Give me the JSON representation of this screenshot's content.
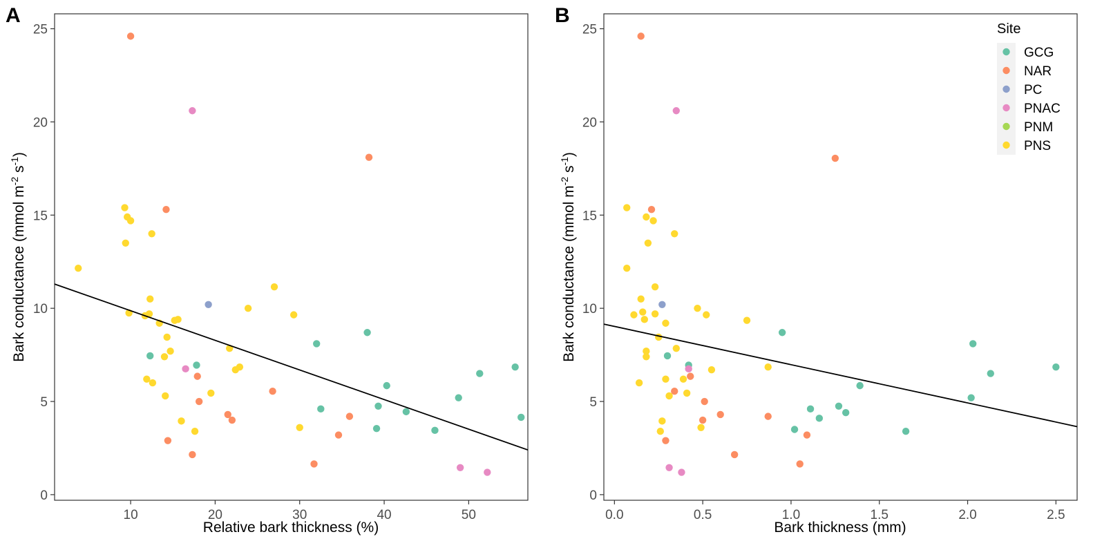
{
  "colors": {
    "GCG": "#66c2a5",
    "NAR": "#fc8d62",
    "PC": "#8da0cb",
    "PNAC": "#e78ac3",
    "PNM": "#a6d854",
    "PNS": "#ffd92f",
    "fit_line": "#000000"
  },
  "legend": {
    "title": "Site",
    "entries": [
      "GCG",
      "NAR",
      "PC",
      "PNAC",
      "PNM",
      "PNS"
    ]
  },
  "chart_data": [
    {
      "panel": "A",
      "type": "scatter",
      "xlabel": "Relative bark thickness (%)",
      "ylabel_parts": [
        "Bark conductance (mmol m",
        "-2",
        " s",
        "-1",
        ")"
      ],
      "xlim": [
        1,
        57
      ],
      "ylim": [
        -0.3,
        25.8
      ],
      "xticks": [
        10,
        20,
        30,
        40,
        50
      ],
      "yticks": [
        0,
        5,
        10,
        15,
        20,
        25
      ],
      "fit_line": {
        "x": [
          1,
          57
        ],
        "y": [
          11.3,
          2.4
        ]
      },
      "series": [
        {
          "name": "GCG",
          "points": [
            [
              12.3,
              7.45
            ],
            [
              17.8,
              6.95
            ],
            [
              32.0,
              8.1
            ],
            [
              32.5,
              4.6
            ],
            [
              38.0,
              8.7
            ],
            [
              39.3,
              4.75
            ],
            [
              39.1,
              3.55
            ],
            [
              40.3,
              5.85
            ],
            [
              42.6,
              4.45
            ],
            [
              46.0,
              3.45
            ],
            [
              48.8,
              5.2
            ],
            [
              51.3,
              6.5
            ],
            [
              55.5,
              6.85
            ],
            [
              56.2,
              4.15
            ]
          ]
        },
        {
          "name": "NAR",
          "points": [
            [
              10.0,
              24.6
            ],
            [
              14.2,
              15.3
            ],
            [
              14.4,
              2.9
            ],
            [
              17.3,
              2.15
            ],
            [
              17.9,
              6.35
            ],
            [
              18.1,
              5.0
            ],
            [
              21.5,
              4.3
            ],
            [
              22.0,
              4.0
            ],
            [
              26.8,
              5.55
            ],
            [
              31.7,
              1.65
            ],
            [
              34.6,
              3.2
            ],
            [
              35.9,
              4.2
            ],
            [
              38.2,
              18.1
            ]
          ]
        },
        {
          "name": "PC",
          "points": [
            [
              19.2,
              10.2
            ]
          ]
        },
        {
          "name": "PNAC",
          "points": [
            [
              16.5,
              6.75
            ],
            [
              17.3,
              20.6
            ],
            [
              49.0,
              1.45
            ],
            [
              52.2,
              1.2
            ]
          ]
        },
        {
          "name": "PNM",
          "points": []
        },
        {
          "name": "PNS",
          "points": [
            [
              3.8,
              12.15
            ],
            [
              9.3,
              15.4
            ],
            [
              9.4,
              13.5
            ],
            [
              9.6,
              14.9
            ],
            [
              9.8,
              9.75
            ],
            [
              10.0,
              14.7
            ],
            [
              11.7,
              9.6
            ],
            [
              11.9,
              6.2
            ],
            [
              12.2,
              9.7
            ],
            [
              12.3,
              10.5
            ],
            [
              12.5,
              14.0
            ],
            [
              12.6,
              6.0
            ],
            [
              13.4,
              9.2
            ],
            [
              14.0,
              7.4
            ],
            [
              14.1,
              5.3
            ],
            [
              14.3,
              8.45
            ],
            [
              14.7,
              7.7
            ],
            [
              15.2,
              9.35
            ],
            [
              15.6,
              9.4
            ],
            [
              16.0,
              3.95
            ],
            [
              17.6,
              3.4
            ],
            [
              19.5,
              5.45
            ],
            [
              21.7,
              7.85
            ],
            [
              22.4,
              6.7
            ],
            [
              22.9,
              6.85
            ],
            [
              23.9,
              10.0
            ],
            [
              27.0,
              11.15
            ],
            [
              29.3,
              9.65
            ],
            [
              30.0,
              3.6
            ]
          ]
        }
      ]
    },
    {
      "panel": "B",
      "type": "scatter",
      "xlabel": "Bark thickness (mm)",
      "ylabel_parts": [
        "Bark conductance (mmol m",
        "-2",
        " s",
        "-1",
        ")"
      ],
      "xlim": [
        -0.06,
        2.62
      ],
      "ylim": [
        -0.3,
        25.8
      ],
      "xticks": [
        0.0,
        0.5,
        1.0,
        1.5,
        2.0,
        2.5
      ],
      "xtick_labels": [
        "0.0",
        "0.5",
        "1.0",
        "1.5",
        "2.0",
        "2.5"
      ],
      "yticks": [
        0,
        5,
        10,
        15,
        20,
        25
      ],
      "fit_line": {
        "x": [
          -0.06,
          2.62
        ],
        "y": [
          9.15,
          3.65
        ]
      },
      "series": [
        {
          "name": "GCG",
          "points": [
            [
              0.3,
              7.45
            ],
            [
              0.42,
              6.95
            ],
            [
              0.95,
              8.7
            ],
            [
              1.02,
              3.5
            ],
            [
              1.11,
              4.6
            ],
            [
              1.16,
              4.1
            ],
            [
              1.27,
              4.75
            ],
            [
              1.31,
              4.4
            ],
            [
              1.39,
              5.85
            ],
            [
              1.65,
              3.4
            ],
            [
              2.02,
              5.2
            ],
            [
              2.03,
              8.1
            ],
            [
              2.13,
              6.5
            ],
            [
              2.5,
              6.85
            ]
          ]
        },
        {
          "name": "NAR",
          "points": [
            [
              0.15,
              24.6
            ],
            [
              0.21,
              15.3
            ],
            [
              0.29,
              2.9
            ],
            [
              0.34,
              5.55
            ],
            [
              0.43,
              6.35
            ],
            [
              0.5,
              4.0
            ],
            [
              0.51,
              5.0
            ],
            [
              0.6,
              4.3
            ],
            [
              0.68,
              2.15
            ],
            [
              0.87,
              4.2
            ],
            [
              1.05,
              1.65
            ],
            [
              1.09,
              3.2
            ],
            [
              1.25,
              18.05
            ]
          ]
        },
        {
          "name": "PC",
          "points": [
            [
              0.27,
              10.2
            ]
          ]
        },
        {
          "name": "PNAC",
          "points": [
            [
              0.31,
              1.45
            ],
            [
              0.35,
              20.6
            ],
            [
              0.38,
              1.2
            ],
            [
              0.42,
              6.75
            ]
          ]
        },
        {
          "name": "PNM",
          "points": []
        },
        {
          "name": "PNS",
          "points": [
            [
              0.07,
              15.4
            ],
            [
              0.07,
              12.15
            ],
            [
              0.11,
              9.65
            ],
            [
              0.14,
              6.0
            ],
            [
              0.15,
              10.5
            ],
            [
              0.16,
              9.8
            ],
            [
              0.17,
              9.4
            ],
            [
              0.18,
              14.9
            ],
            [
              0.18,
              7.7
            ],
            [
              0.18,
              7.4
            ],
            [
              0.19,
              13.5
            ],
            [
              0.22,
              14.7
            ],
            [
              0.23,
              11.15
            ],
            [
              0.23,
              9.7
            ],
            [
              0.25,
              8.45
            ],
            [
              0.26,
              3.4
            ],
            [
              0.27,
              3.95
            ],
            [
              0.29,
              9.2
            ],
            [
              0.29,
              6.2
            ],
            [
              0.31,
              5.3
            ],
            [
              0.34,
              14.0
            ],
            [
              0.35,
              7.85
            ],
            [
              0.39,
              6.2
            ],
            [
              0.41,
              5.45
            ],
            [
              0.47,
              10.0
            ],
            [
              0.49,
              3.6
            ],
            [
              0.52,
              9.65
            ],
            [
              0.55,
              6.7
            ],
            [
              0.75,
              9.35
            ],
            [
              0.87,
              6.85
            ]
          ]
        }
      ]
    }
  ]
}
